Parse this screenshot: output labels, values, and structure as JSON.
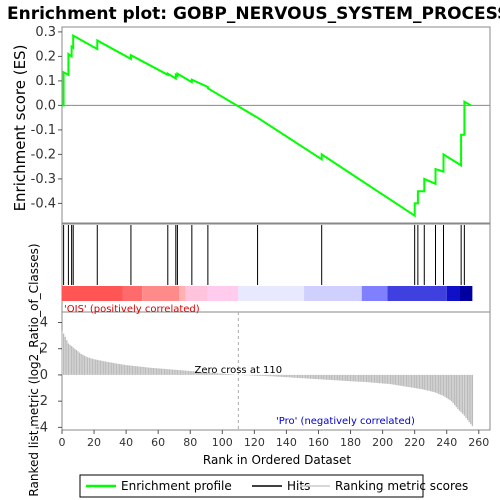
{
  "chart_data": {
    "type": "line",
    "title": "Enrichment plot: GOBP_NERVOUS_SYSTEM_PROCESS",
    "top_panel": {
      "ylabel": "Enrichment score (ES)",
      "ylim": [
        -0.48,
        0.32
      ],
      "yticks": [
        "0.3",
        "0.2",
        "0.1",
        "0.0",
        "-0.1",
        "-0.2",
        "-0.3",
        "-0.4"
      ],
      "ytick_values": [
        0.3,
        0.2,
        0.1,
        0.0,
        -0.1,
        -0.2,
        -0.3,
        -0.4
      ],
      "series": [
        {
          "name": "Enrichment profile",
          "color": "#00ff00",
          "x": [
            0,
            1,
            1,
            4,
            4,
            6,
            6,
            7,
            7,
            22,
            22,
            43,
            43,
            66,
            66,
            71,
            71,
            72,
            72,
            81,
            81,
            91,
            91,
            122,
            122,
            162,
            162,
            220,
            220,
            222,
            222,
            226,
            226,
            233,
            233,
            238,
            238,
            249,
            249,
            251,
            251,
            255
          ],
          "y": [
            0.0,
            0.0,
            0.135,
            0.125,
            0.21,
            0.2,
            0.24,
            0.235,
            0.285,
            0.23,
            0.265,
            0.19,
            0.205,
            0.125,
            0.13,
            0.11,
            0.125,
            0.12,
            0.13,
            0.095,
            0.105,
            0.075,
            0.07,
            -0.05,
            -0.05,
            -0.22,
            -0.2,
            -0.45,
            -0.4,
            -0.4,
            -0.35,
            -0.35,
            -0.3,
            -0.32,
            -0.26,
            -0.27,
            -0.2,
            -0.245,
            -0.12,
            -0.12,
            0.015,
            0.0
          ]
        }
      ]
    },
    "hits_panel": {
      "hit_ranks": [
        1,
        4,
        6,
        7,
        22,
        43,
        66,
        71,
        72,
        81,
        91,
        122,
        162,
        220,
        222,
        226,
        233,
        238,
        249,
        251
      ],
      "color_bar": [
        {
          "from": 0,
          "to": 38,
          "color": "#ff5555"
        },
        {
          "from": 38,
          "to": 50,
          "color": "#ff6b6b"
        },
        {
          "from": 50,
          "to": 73,
          "color": "#ff8a8a"
        },
        {
          "from": 73,
          "to": 77,
          "color": "#ffb0b0"
        },
        {
          "from": 77,
          "to": 91,
          "color": "#ffc4dc"
        },
        {
          "from": 91,
          "to": 110,
          "color": "#ffccee"
        },
        {
          "from": 110,
          "to": 151,
          "color": "#e8e8ff"
        },
        {
          "from": 151,
          "to": 187,
          "color": "#d0d0ff"
        },
        {
          "from": 187,
          "to": 203,
          "color": "#8080ff"
        },
        {
          "from": 203,
          "to": 240,
          "color": "#4040e0"
        },
        {
          "from": 240,
          "to": 248,
          "color": "#1010c8"
        },
        {
          "from": 248,
          "to": 256,
          "color": "#0000a0"
        }
      ],
      "label_positive": "'OIS' (positively correlated)",
      "label_positive_color": "#dd0000",
      "label_negative": "'Pro' (negatively correlated)",
      "label_negative_color": "#0000cc"
    },
    "bottom_panel": {
      "ylabel": "Ranked list metric (log2_Ratio_of_Classes)",
      "xlabel": "Rank in Ordered Dataset",
      "ylim": [
        -4.2,
        4.8
      ],
      "yticks": [
        "4",
        "2",
        "0",
        "-2",
        "-4"
      ],
      "ytick_values": [
        4,
        2,
        0,
        -2,
        -4
      ],
      "xlim": [
        0,
        267
      ],
      "xticks": [
        "0",
        "20",
        "40",
        "60",
        "80",
        "100",
        "120",
        "140",
        "160",
        "180",
        "200",
        "220",
        "240",
        "260"
      ],
      "xtick_values": [
        0,
        20,
        40,
        60,
        80,
        100,
        120,
        140,
        160,
        180,
        200,
        220,
        240,
        260
      ],
      "zero_cross_label": "Zero cross at 110",
      "zero_cross": 110,
      "metric_profile": [
        [
          0,
          3.4
        ],
        [
          2,
          2.9
        ],
        [
          4,
          2.4
        ],
        [
          8,
          2.0
        ],
        [
          12,
          1.6
        ],
        [
          16,
          1.35
        ],
        [
          20,
          1.2
        ],
        [
          28,
          1.0
        ],
        [
          40,
          0.75
        ],
        [
          55,
          0.55
        ],
        [
          70,
          0.4
        ],
        [
          85,
          0.25
        ],
        [
          100,
          0.1
        ],
        [
          110,
          0.0
        ],
        [
          130,
          -0.1
        ],
        [
          150,
          -0.25
        ],
        [
          170,
          -0.4
        ],
        [
          190,
          -0.55
        ],
        [
          205,
          -0.7
        ],
        [
          215,
          -0.9
        ],
        [
          225,
          -1.1
        ],
        [
          232,
          -1.3
        ],
        [
          238,
          -1.6
        ],
        [
          243,
          -2.0
        ],
        [
          247,
          -2.6
        ],
        [
          251,
          -3.1
        ],
        [
          254,
          -3.6
        ],
        [
          256,
          -3.9
        ]
      ]
    },
    "legend": {
      "items": [
        {
          "label": "Enrichment profile",
          "color": "#00ff00",
          "kind": "thick-line"
        },
        {
          "label": "Hits",
          "color": "#000000",
          "kind": "line"
        },
        {
          "label": "Ranking metric scores",
          "color": "#cccccc",
          "kind": "line"
        }
      ]
    }
  }
}
